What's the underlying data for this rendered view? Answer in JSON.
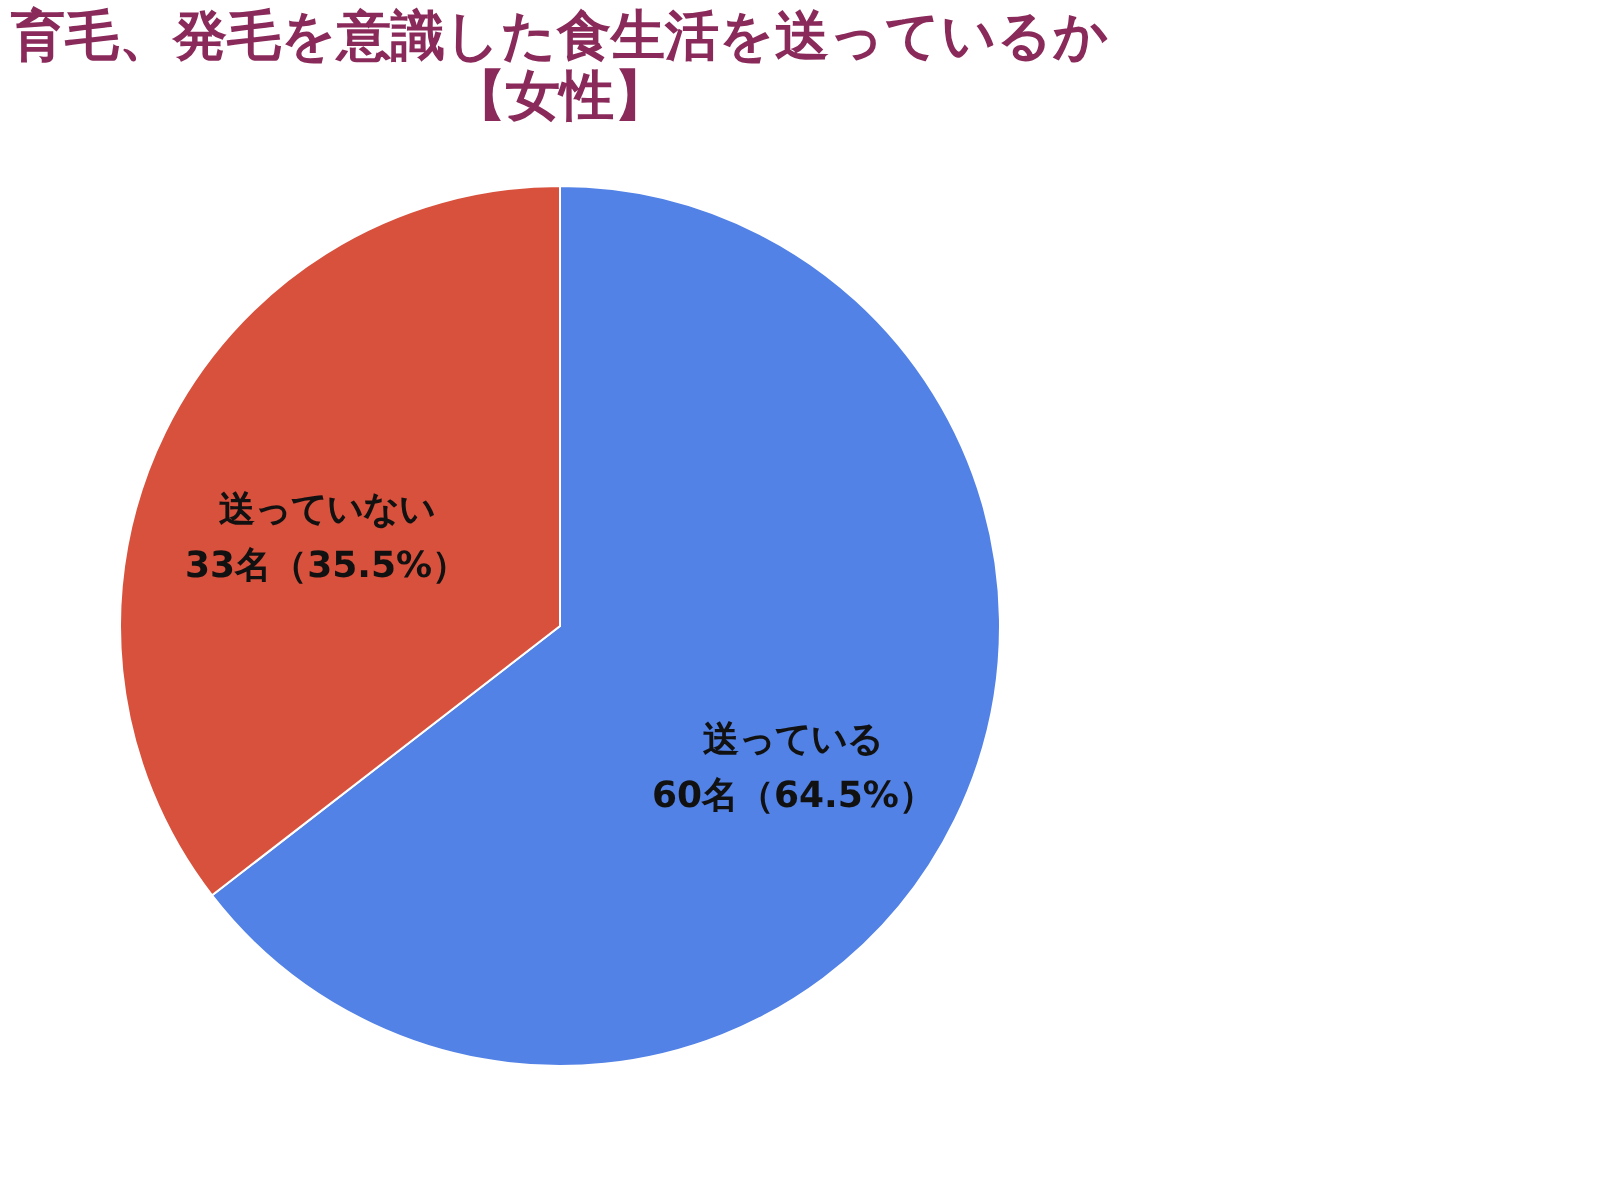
{
  "chart_data": {
    "type": "pie",
    "title": "育毛、発毛を意識した食生活を送っているか",
    "subtitle": "【女性】",
    "categories": [
      "送っている",
      "送っていない"
    ],
    "values": [
      60,
      33
    ],
    "value_labels": [
      "60名（64.5%）",
      "33名（35.5%）"
    ],
    "colors": [
      "#5282e6",
      "#d8513d"
    ],
    "legend": false
  }
}
